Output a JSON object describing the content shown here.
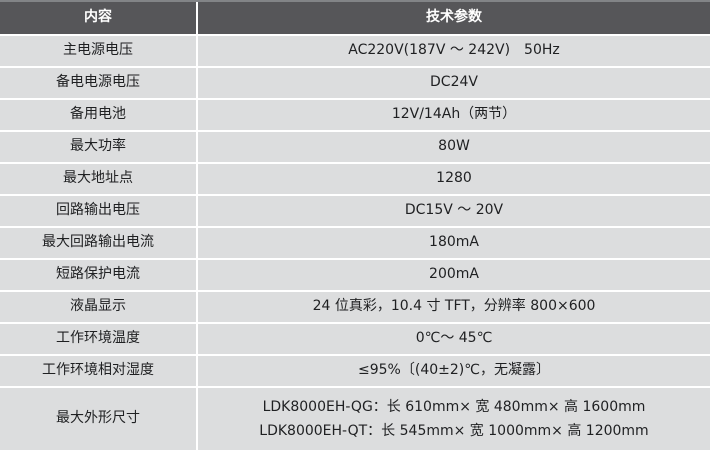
{
  "table": {
    "colors": {
      "header_bg": "#565659",
      "header_text": "#ffffff",
      "row_bg": "#dcddde",
      "divider": "#ffffff",
      "body_text": "#1f2022",
      "top_border": "#828487"
    },
    "columns": {
      "content": "内容",
      "params": "技术参数"
    },
    "rows": [
      {
        "label": "主电源电压",
        "values": [
          "AC220V(187V ～ 242V)　50Hz"
        ]
      },
      {
        "label": "备电电源电压",
        "values": [
          "DC24V"
        ]
      },
      {
        "label": "备用电池",
        "values": [
          "12V/14Ah（两节）"
        ]
      },
      {
        "label": "最大功率",
        "values": [
          "80W"
        ]
      },
      {
        "label": "最大地址点",
        "values": [
          "1280"
        ]
      },
      {
        "label": "回路输出电压",
        "values": [
          "DC15V ～ 20V"
        ]
      },
      {
        "label": "最大回路输出电流",
        "values": [
          "180mA"
        ]
      },
      {
        "label": "短路保护电流",
        "values": [
          "200mA"
        ]
      },
      {
        "label": "液晶显示",
        "values": [
          "24 位真彩，10.4 寸 TFT，分辨率 800×600"
        ]
      },
      {
        "label": "工作环境温度",
        "values": [
          "0℃～ 45℃"
        ]
      },
      {
        "label": "工作环境相对湿度",
        "values": [
          "≤95%〔(40±2)℃，无凝露〕"
        ]
      },
      {
        "label": "最大外形尺寸",
        "values": [
          "LDK8000EH-QG：长 610mm× 宽 480mm× 高 1600mm",
          "LDK8000EH-QT：长 545mm× 宽 1000mm× 高 1200mm"
        ]
      }
    ]
  }
}
